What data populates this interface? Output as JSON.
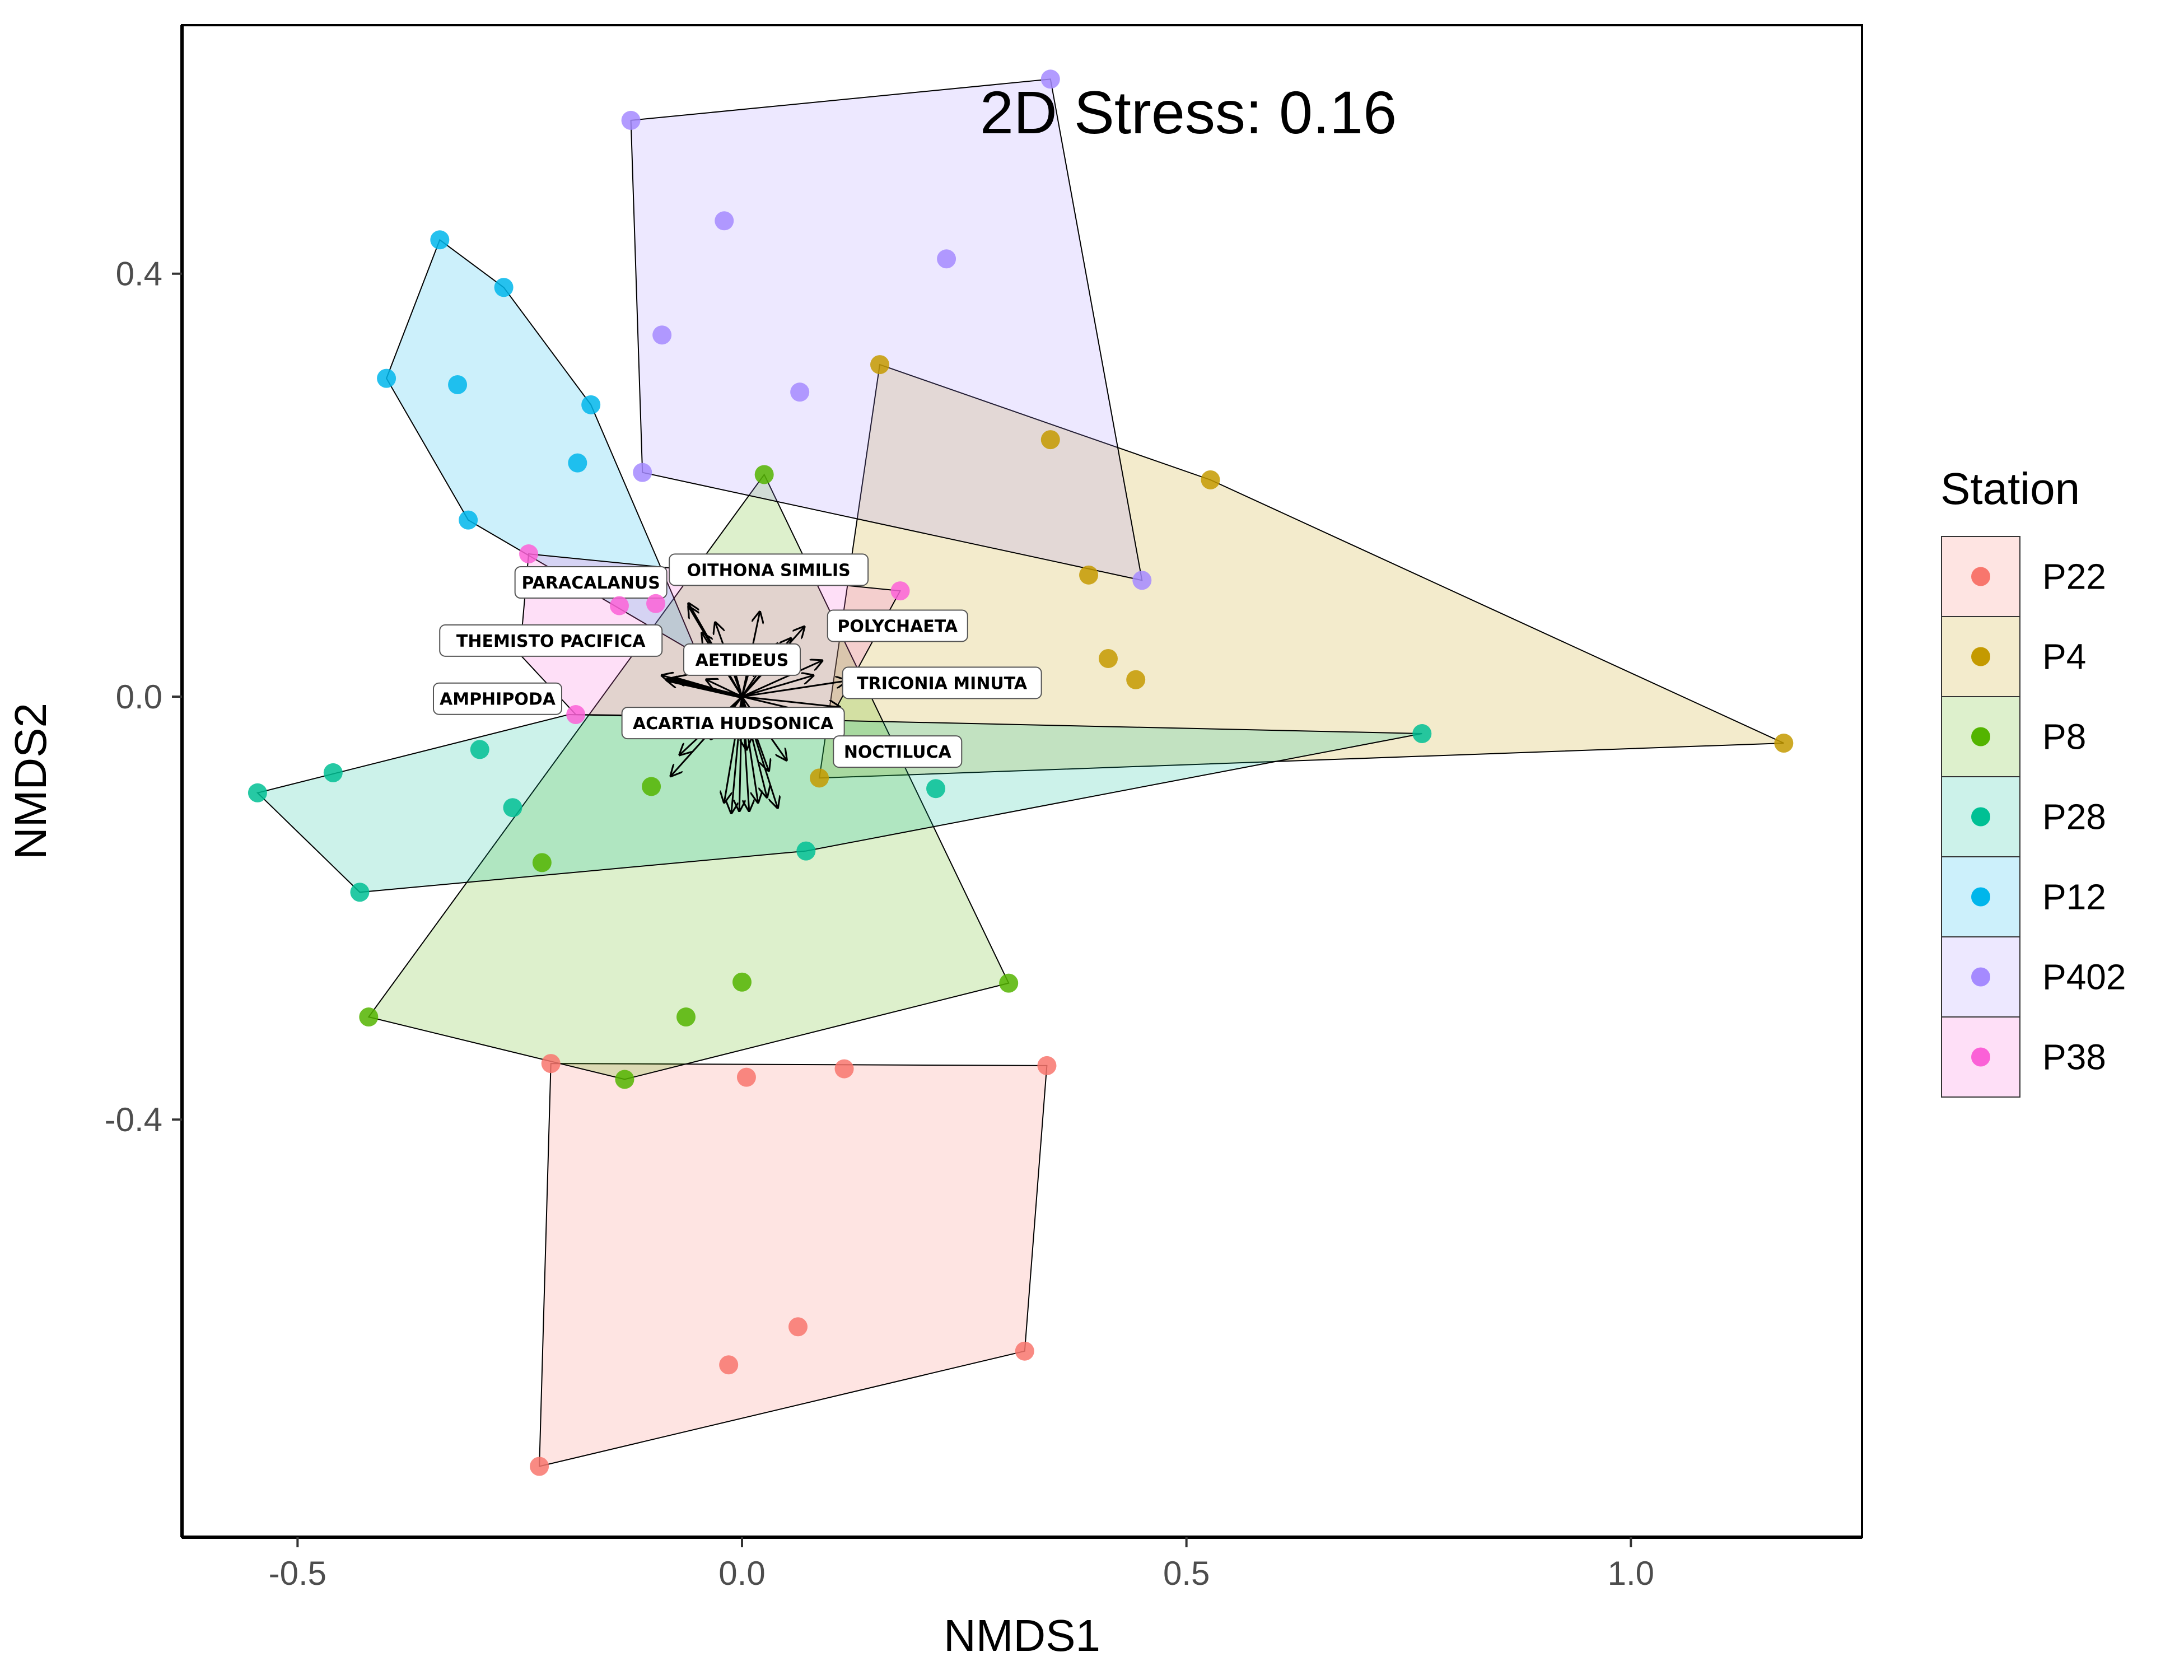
{
  "chart_data": {
    "type": "scatter",
    "title": "",
    "annotation": "2D Stress: 0.16",
    "xlabel": "NMDS1",
    "ylabel": "NMDS2",
    "xlim": [
      -0.63,
      1.26
    ],
    "ylim": [
      -0.795,
      0.635
    ],
    "x_ticks": [
      -0.5,
      0.0,
      0.5,
      1.0
    ],
    "x_tick_labels": [
      "-0.5",
      "0.0",
      "0.5",
      "1.0"
    ],
    "y_ticks": [
      -0.4,
      0.0,
      0.4
    ],
    "y_tick_labels": [
      "-0.4",
      "0.0",
      "0.4"
    ],
    "grid": false,
    "legend": {
      "title": "Station",
      "placement": "right"
    },
    "series": [
      {
        "name": "P22",
        "color": "#F8766D",
        "points": [
          [
            -0.215,
            -0.347
          ],
          [
            0.005,
            -0.36
          ],
          [
            0.115,
            -0.352
          ],
          [
            0.343,
            -0.349
          ],
          [
            0.063,
            -0.596
          ],
          [
            -0.015,
            -0.632
          ],
          [
            0.318,
            -0.619
          ],
          [
            -0.228,
            -0.728
          ]
        ],
        "hull": [
          [
            -0.215,
            -0.347
          ],
          [
            0.343,
            -0.349
          ],
          [
            0.318,
            -0.619
          ],
          [
            -0.228,
            -0.728
          ]
        ]
      },
      {
        "name": "P4",
        "color": "#C49A00",
        "points": [
          [
            0.155,
            0.314
          ],
          [
            0.347,
            0.243
          ],
          [
            0.527,
            0.205
          ],
          [
            0.39,
            0.115
          ],
          [
            0.412,
            0.036
          ],
          [
            0.443,
            0.016
          ],
          [
            1.172,
            -0.044
          ],
          [
            0.087,
            -0.077
          ]
        ],
        "hull": [
          [
            0.155,
            0.314
          ],
          [
            0.527,
            0.205
          ],
          [
            1.172,
            -0.044
          ],
          [
            0.087,
            -0.077
          ]
        ]
      },
      {
        "name": "P8",
        "color": "#53B400",
        "points": [
          [
            0.025,
            0.21
          ],
          [
            -0.102,
            -0.085
          ],
          [
            -0.225,
            -0.157
          ],
          [
            0.3,
            -0.271
          ],
          [
            0.0,
            -0.27
          ],
          [
            -0.063,
            -0.303
          ],
          [
            -0.42,
            -0.303
          ],
          [
            -0.132,
            -0.362
          ]
        ],
        "hull": [
          [
            0.025,
            0.21
          ],
          [
            0.3,
            -0.271
          ],
          [
            -0.132,
            -0.362
          ],
          [
            -0.42,
            -0.303
          ]
        ]
      },
      {
        "name": "P28",
        "color": "#00C094",
        "points": [
          [
            -0.545,
            -0.091
          ],
          [
            -0.46,
            -0.072
          ],
          [
            -0.295,
            -0.05
          ],
          [
            -0.258,
            -0.105
          ],
          [
            -0.43,
            -0.185
          ],
          [
            0.072,
            -0.146
          ],
          [
            0.218,
            -0.087
          ],
          [
            0.765,
            -0.035
          ]
        ],
        "hull": [
          [
            -0.545,
            -0.091
          ],
          [
            -0.195,
            -0.017
          ],
          [
            0.765,
            -0.035
          ],
          [
            0.072,
            -0.146
          ],
          [
            -0.43,
            -0.185
          ]
        ]
      },
      {
        "name": "P12",
        "color": "#00B6EB",
        "points": [
          [
            -0.34,
            0.432
          ],
          [
            -0.268,
            0.387
          ],
          [
            -0.4,
            0.301
          ],
          [
            -0.32,
            0.295
          ],
          [
            -0.17,
            0.276
          ],
          [
            -0.185,
            0.221
          ],
          [
            -0.308,
            0.167
          ]
        ],
        "hull": [
          [
            -0.34,
            0.432
          ],
          [
            -0.268,
            0.387
          ],
          [
            -0.17,
            0.276
          ],
          [
            -0.08,
            0.1
          ],
          [
            -0.05,
            0.04
          ],
          [
            -0.308,
            0.167
          ],
          [
            -0.4,
            0.301
          ]
        ]
      },
      {
        "name": "P402",
        "color": "#A58AFF",
        "points": [
          [
            0.347,
            0.584
          ],
          [
            -0.125,
            0.545
          ],
          [
            -0.02,
            0.45
          ],
          [
            0.23,
            0.414
          ],
          [
            -0.09,
            0.342
          ],
          [
            0.065,
            0.288
          ],
          [
            -0.112,
            0.212
          ],
          [
            0.45,
            0.11
          ]
        ],
        "hull": [
          [
            0.347,
            0.584
          ],
          [
            0.45,
            0.11
          ],
          [
            -0.112,
            0.212
          ],
          [
            -0.125,
            0.545
          ]
        ]
      },
      {
        "name": "P38",
        "color": "#FB61D7",
        "points": [
          [
            -0.24,
            0.135
          ],
          [
            0.178,
            0.1
          ],
          [
            -0.138,
            0.086
          ],
          [
            -0.097,
            0.088
          ],
          [
            -0.187,
            -0.017
          ]
        ],
        "hull": [
          [
            -0.24,
            0.135
          ],
          [
            0.178,
            0.1
          ],
          [
            0.1,
            -0.02
          ],
          [
            -0.187,
            -0.017
          ],
          [
            -0.25,
            0.04
          ]
        ]
      }
    ],
    "species_vectors": [
      {
        "label": "OITHONA SIMILIS",
        "x": 0.03,
        "y": 0.12,
        "end": [
          0.02,
          0.08
        ]
      },
      {
        "label": "PARACALANUS",
        "x": -0.17,
        "y": 0.108,
        "end": [
          -0.06,
          0.088
        ]
      },
      {
        "label": "POLYCHAETA",
        "x": 0.175,
        "y": 0.067,
        "end": [
          0.07,
          0.066
        ]
      },
      {
        "label": "THEMISTO PACIFICA",
        "x": -0.215,
        "y": 0.053,
        "end": [
          -0.09,
          0.02
        ]
      },
      {
        "label": "AETIDEUS",
        "x": 0.0,
        "y": 0.035,
        "end": [
          0.09,
          0.034
        ]
      },
      {
        "label": "TRICONIA MINUTA",
        "x": 0.225,
        "y": 0.013,
        "end": [
          0.118,
          0.015
        ]
      },
      {
        "label": "AMPHIPODA",
        "x": -0.275,
        "y": -0.002,
        "end": [
          -0.085,
          0.016
        ]
      },
      {
        "label": "ACARTIA HUDSONICA",
        "x": -0.01,
        "y": -0.025,
        "end": [
          -0.08,
          -0.075
        ]
      },
      {
        "label": "NOCTILUCA",
        "x": 0.175,
        "y": -0.052,
        "end": [
          0.04,
          -0.105
        ]
      }
    ],
    "extra_vector_ends": [
      [
        -0.06,
        0.085
      ],
      [
        -0.045,
        0.06
      ],
      [
        -0.03,
        0.07
      ],
      [
        0.04,
        0.05
      ],
      [
        0.055,
        0.055
      ],
      [
        0.08,
        0.02
      ],
      [
        0.11,
        -0.01
      ],
      [
        0.1,
        -0.02
      ],
      [
        0.005,
        -0.05
      ],
      [
        0.05,
        -0.06
      ],
      [
        -0.035,
        -0.04
      ],
      [
        -0.07,
        -0.055
      ],
      [
        -0.02,
        -0.1
      ],
      [
        -0.012,
        -0.11
      ],
      [
        -0.003,
        -0.108
      ],
      [
        0.008,
        -0.108
      ],
      [
        0.018,
        -0.1
      ],
      [
        0.028,
        -0.095
      ],
      [
        0.03,
        -0.07
      ],
      [
        -0.04,
        0.016
      ],
      [
        -0.075,
        0.018
      ],
      [
        0.01,
        0.03
      ],
      [
        -0.01,
        0.03
      ]
    ]
  }
}
